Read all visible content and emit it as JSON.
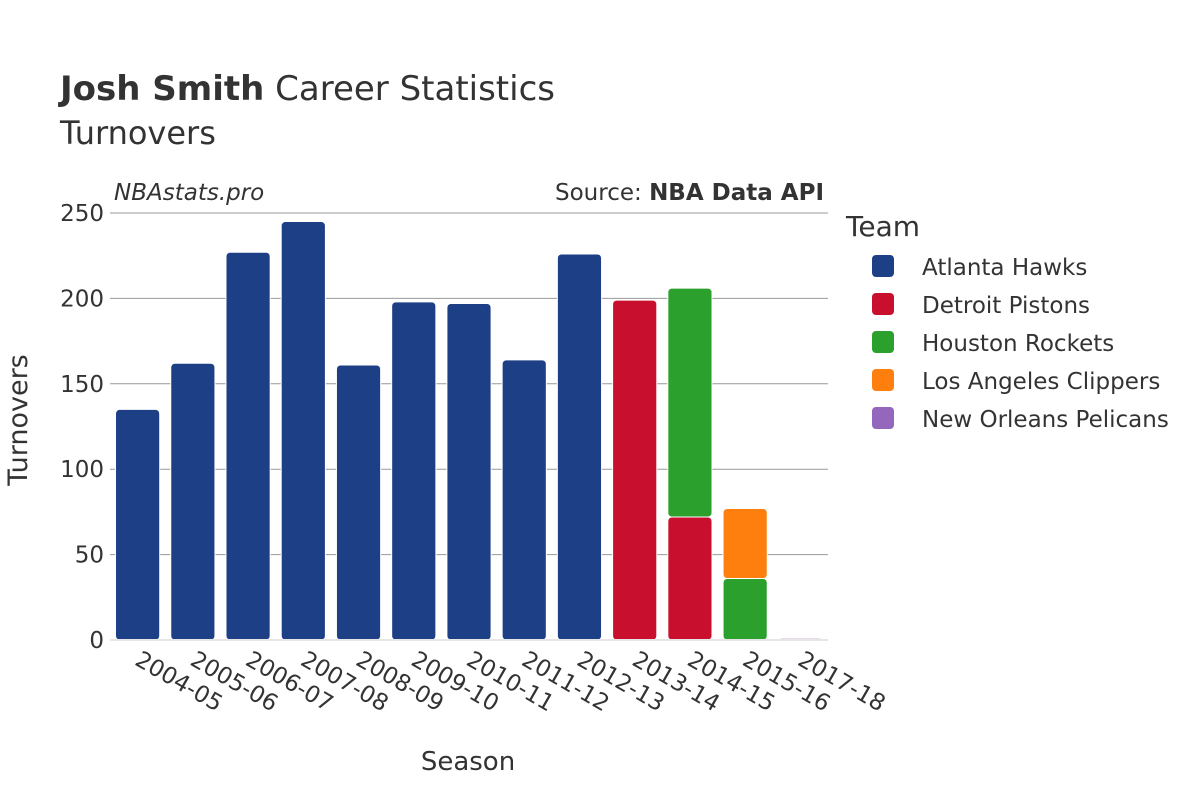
{
  "header": {
    "title_bold": "Josh Smith",
    "title_rest": "Career Statistics",
    "subtitle": "Turnovers"
  },
  "credits": {
    "watermark": "NBAstats.pro",
    "source_label": "Source:",
    "source_name": "NBA Data API"
  },
  "legend": {
    "title": "Team",
    "placement": "right"
  },
  "chart_data": {
    "type": "bar",
    "stacked": true,
    "xlabel": "Season",
    "ylabel": "Turnovers",
    "ylim": [
      0,
      250
    ],
    "yticks": [
      0,
      50,
      100,
      150,
      200,
      250
    ],
    "grid": true,
    "categories": [
      "2004-05",
      "2005-06",
      "2006-07",
      "2007-08",
      "2008-09",
      "2009-10",
      "2010-11",
      "2011-12",
      "2012-13",
      "2013-14",
      "2014-15",
      "2015-16",
      "2017-18"
    ],
    "series": [
      {
        "name": "Atlanta Hawks",
        "color": "#1c3f86",
        "values": [
          135,
          162,
          227,
          245,
          161,
          198,
          197,
          164,
          226,
          0,
          0,
          0,
          0
        ]
      },
      {
        "name": "Detroit Pistons",
        "color": "#c8102e",
        "values": [
          0,
          0,
          0,
          0,
          0,
          0,
          0,
          0,
          0,
          199,
          72,
          0,
          0
        ]
      },
      {
        "name": "Houston Rockets",
        "color": "#2ca02c",
        "values": [
          0,
          0,
          0,
          0,
          0,
          0,
          0,
          0,
          0,
          0,
          134,
          36,
          0
        ]
      },
      {
        "name": "Los Angeles Clippers",
        "color": "#ff7f0e",
        "values": [
          0,
          0,
          0,
          0,
          0,
          0,
          0,
          0,
          0,
          0,
          0,
          41,
          0
        ]
      },
      {
        "name": "New Orleans Pelicans",
        "color": "#9467bd",
        "values": [
          0,
          0,
          0,
          0,
          0,
          0,
          0,
          0,
          0,
          0,
          0,
          0,
          1
        ]
      }
    ]
  }
}
